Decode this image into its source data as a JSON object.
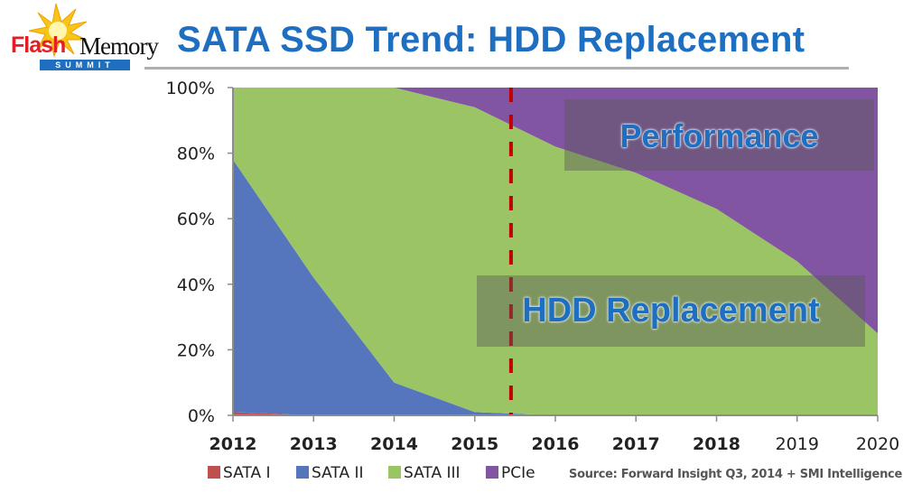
{
  "logo": {
    "word1": "Flash",
    "word2": "Memory",
    "word3": "SUMMIT"
  },
  "header": {
    "title": "SATA SSD Trend: HDD Replacement"
  },
  "annotations": {
    "top_box": "Performance",
    "bottom_box": "HDD Replacement"
  },
  "source": "Source: Forward Insight Q3, 2014 + SMI Intelligence",
  "colors": {
    "SATA I": "#c0504d",
    "SATA II": "#5575bc",
    "SATA III": "#9bc564",
    "PCIe": "#8155a2",
    "marker": "#c00000",
    "title": "#1f6fc0"
  },
  "chart_data": {
    "type": "area",
    "stacked": true,
    "normalized": true,
    "title": "SATA SSD Trend: HDD Replacement",
    "xlabel": "",
    "ylabel": "",
    "x": [
      "2012",
      "2013",
      "2014",
      "2015",
      "2016",
      "2017",
      "2018",
      "2019",
      "2020"
    ],
    "ylim": [
      0,
      100
    ],
    "yticks": [
      "0%",
      "20%",
      "40%",
      "60%",
      "80%",
      "100%"
    ],
    "series": [
      {
        "name": "SATA I",
        "values": [
          1,
          0,
          0,
          0,
          0,
          0,
          0,
          0,
          0
        ]
      },
      {
        "name": "SATA II",
        "values": [
          77,
          42,
          10,
          1,
          0,
          0,
          0,
          0,
          0
        ]
      },
      {
        "name": "SATA III",
        "values": [
          22,
          58,
          90,
          93,
          82,
          74,
          63,
          47,
          25
        ]
      },
      {
        "name": "PCIe",
        "values": [
          0,
          0,
          0,
          6,
          18,
          26,
          37,
          53,
          75
        ]
      }
    ],
    "vertical_marker": {
      "x": 2015.45,
      "style": "dashed",
      "color": "#c00000"
    },
    "legend": {
      "position": "bottom-left",
      "entries": [
        "SATA I",
        "SATA II",
        "SATA III",
        "PCIe"
      ]
    },
    "grid": false
  }
}
